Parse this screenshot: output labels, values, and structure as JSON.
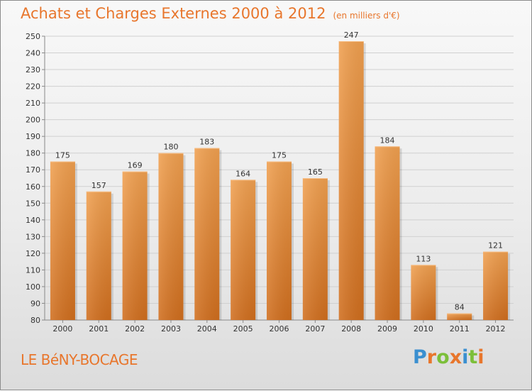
{
  "title": "Achats et Charges Externes 2000 à 2012",
  "unit": "(en milliers d'€)",
  "place": "LE BéNY-BOCAGE",
  "logo": {
    "text": "Proxiti",
    "letters": [
      {
        "ch": "P",
        "color": "#3a8fd0"
      },
      {
        "ch": "r",
        "color": "#e8762c"
      },
      {
        "ch": "o",
        "color": "#7cbf3a"
      },
      {
        "ch": "x",
        "color": "#e8762c"
      },
      {
        "ch": "i",
        "color": "#3a8fd0"
      },
      {
        "ch": "t",
        "color": "#7cbf3a"
      },
      {
        "ch": "i",
        "color": "#e8762c"
      }
    ]
  },
  "chart_data": {
    "type": "bar",
    "title": "Achats et Charges Externes 2000 à 2012",
    "subtitle": "(en milliers d'€)",
    "categories": [
      "2000",
      "2001",
      "2002",
      "2003",
      "2004",
      "2005",
      "2006",
      "2007",
      "2008",
      "2009",
      "2010",
      "2011",
      "2012"
    ],
    "values": [
      175,
      157,
      169,
      180,
      183,
      164,
      175,
      165,
      247,
      184,
      113,
      84,
      121
    ],
    "ylim": [
      80,
      250
    ],
    "yticks": [
      80,
      90,
      100,
      110,
      120,
      130,
      140,
      150,
      160,
      170,
      180,
      190,
      200,
      210,
      220,
      230,
      240,
      250
    ],
    "grid": true,
    "bar_color": "#f0a050",
    "bar_color_dark": "#d06e1e"
  }
}
